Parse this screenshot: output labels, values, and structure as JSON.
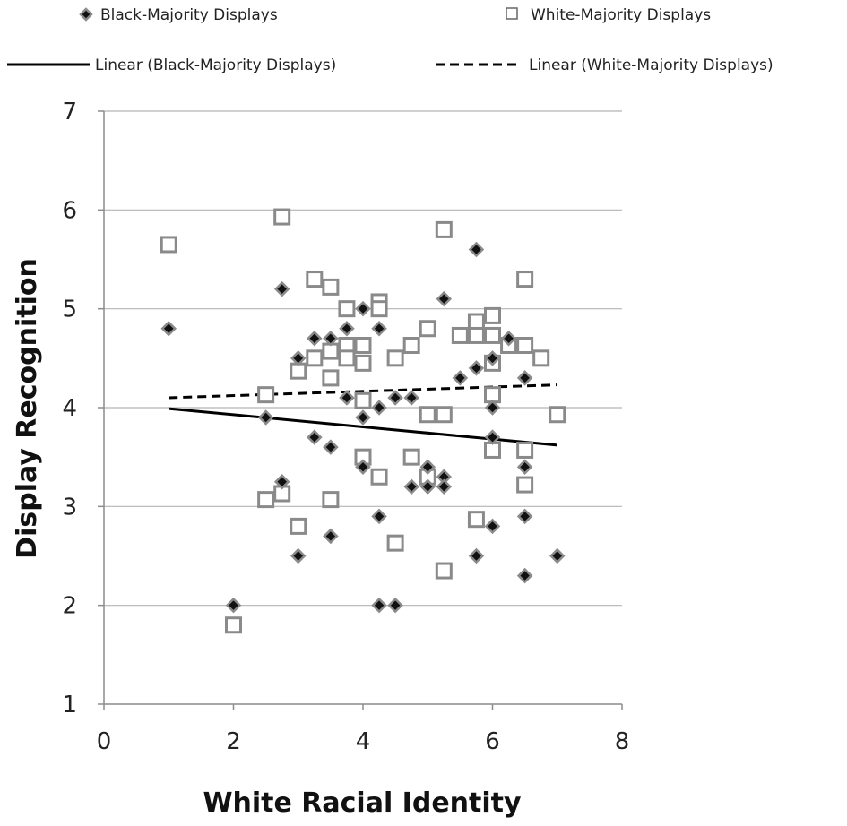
{
  "chart_data": {
    "type": "scatter",
    "xlabel": "White Racial Identity",
    "ylabel": "Display Recognition",
    "xlim": [
      0,
      8
    ],
    "ylim": [
      1,
      7
    ],
    "xticks": [
      "0",
      "2",
      "4",
      "6",
      "8"
    ],
    "yticks": [
      "1",
      "2",
      "3",
      "4",
      "5",
      "6",
      "7"
    ],
    "grid": "horizontal",
    "legend_position": "top",
    "legend": {
      "black_points": "Black-Majority Displays",
      "white_points": "White-Majority Displays",
      "black_trend": "Linear (Black-Majority Displays)",
      "white_trend": "Linear (White-Majority Displays)"
    },
    "series": [
      {
        "name": "Black-Majority Displays",
        "marker": "diamond-filled",
        "points": [
          [
            1.0,
            4.8
          ],
          [
            2.0,
            2.0
          ],
          [
            2.5,
            3.9
          ],
          [
            2.75,
            3.25
          ],
          [
            2.75,
            5.2
          ],
          [
            3.0,
            2.5
          ],
          [
            3.0,
            4.5
          ],
          [
            3.25,
            4.7
          ],
          [
            3.25,
            3.7
          ],
          [
            3.5,
            4.7
          ],
          [
            3.5,
            3.6
          ],
          [
            3.5,
            2.7
          ],
          [
            3.75,
            4.8
          ],
          [
            3.75,
            4.1
          ],
          [
            4.0,
            5.0
          ],
          [
            4.0,
            3.9
          ],
          [
            4.0,
            3.4
          ],
          [
            4.25,
            4.8
          ],
          [
            4.25,
            4.0
          ],
          [
            4.25,
            2.9
          ],
          [
            4.25,
            2.0
          ],
          [
            4.5,
            4.1
          ],
          [
            4.5,
            2.0
          ],
          [
            4.75,
            4.1
          ],
          [
            4.75,
            3.2
          ],
          [
            5.0,
            3.4
          ],
          [
            5.0,
            3.2
          ],
          [
            5.25,
            5.1
          ],
          [
            5.25,
            3.3
          ],
          [
            5.25,
            3.2
          ],
          [
            5.5,
            4.3
          ],
          [
            5.75,
            5.6
          ],
          [
            5.75,
            4.4
          ],
          [
            5.75,
            2.5
          ],
          [
            6.0,
            4.5
          ],
          [
            6.0,
            4.0
          ],
          [
            6.0,
            3.7
          ],
          [
            6.0,
            2.8
          ],
          [
            6.25,
            4.7
          ],
          [
            6.5,
            4.3
          ],
          [
            6.5,
            3.4
          ],
          [
            6.5,
            2.9
          ],
          [
            6.5,
            2.3
          ],
          [
            7.0,
            2.5
          ]
        ]
      },
      {
        "name": "White-Majority Displays",
        "marker": "square-open",
        "points": [
          [
            1.0,
            5.65
          ],
          [
            2.0,
            1.8
          ],
          [
            2.5,
            4.13
          ],
          [
            2.5,
            3.07
          ],
          [
            2.75,
            5.93
          ],
          [
            2.75,
            3.13
          ],
          [
            3.0,
            4.37
          ],
          [
            3.0,
            2.8
          ],
          [
            3.25,
            5.3
          ],
          [
            3.25,
            4.5
          ],
          [
            3.5,
            5.22
          ],
          [
            3.5,
            4.57
          ],
          [
            3.5,
            4.3
          ],
          [
            3.5,
            3.07
          ],
          [
            3.75,
            5.0
          ],
          [
            3.75,
            4.63
          ],
          [
            3.75,
            4.5
          ],
          [
            4.0,
            4.63
          ],
          [
            4.0,
            4.45
          ],
          [
            4.0,
            4.07
          ],
          [
            4.0,
            3.5
          ],
          [
            4.25,
            5.07
          ],
          [
            4.25,
            5.0
          ],
          [
            4.25,
            3.3
          ],
          [
            4.5,
            4.5
          ],
          [
            4.5,
            2.63
          ],
          [
            4.75,
            4.63
          ],
          [
            4.75,
            3.5
          ],
          [
            5.0,
            4.8
          ],
          [
            5.0,
            3.93
          ],
          [
            5.0,
            3.3
          ],
          [
            5.25,
            5.8
          ],
          [
            5.25,
            3.93
          ],
          [
            5.25,
            2.35
          ],
          [
            5.5,
            4.73
          ],
          [
            5.75,
            4.87
          ],
          [
            5.75,
            4.73
          ],
          [
            5.75,
            2.87
          ],
          [
            6.0,
            4.93
          ],
          [
            6.0,
            4.73
          ],
          [
            6.0,
            4.45
          ],
          [
            6.0,
            4.13
          ],
          [
            6.0,
            3.57
          ],
          [
            6.25,
            4.63
          ],
          [
            6.5,
            5.3
          ],
          [
            6.5,
            4.63
          ],
          [
            6.5,
            3.57
          ],
          [
            6.5,
            3.22
          ],
          [
            6.75,
            4.5
          ],
          [
            7.0,
            3.93
          ]
        ]
      }
    ],
    "trendlines": [
      {
        "name": "Linear (Black-Majority Displays)",
        "style": "solid",
        "from": [
          1.0,
          3.99
        ],
        "to": [
          7.0,
          3.62
        ]
      },
      {
        "name": "Linear (White-Majority Displays)",
        "style": "dashed",
        "from": [
          1.0,
          4.1
        ],
        "to": [
          7.0,
          4.23
        ]
      }
    ],
    "colors": {
      "marker_fill": "#111111",
      "marker_outline": "#8a8a8a",
      "square_fill": "#ffffff",
      "gridline": "#b5b5b5",
      "axis": "#8c8c8c",
      "trendline": "#000000"
    }
  }
}
